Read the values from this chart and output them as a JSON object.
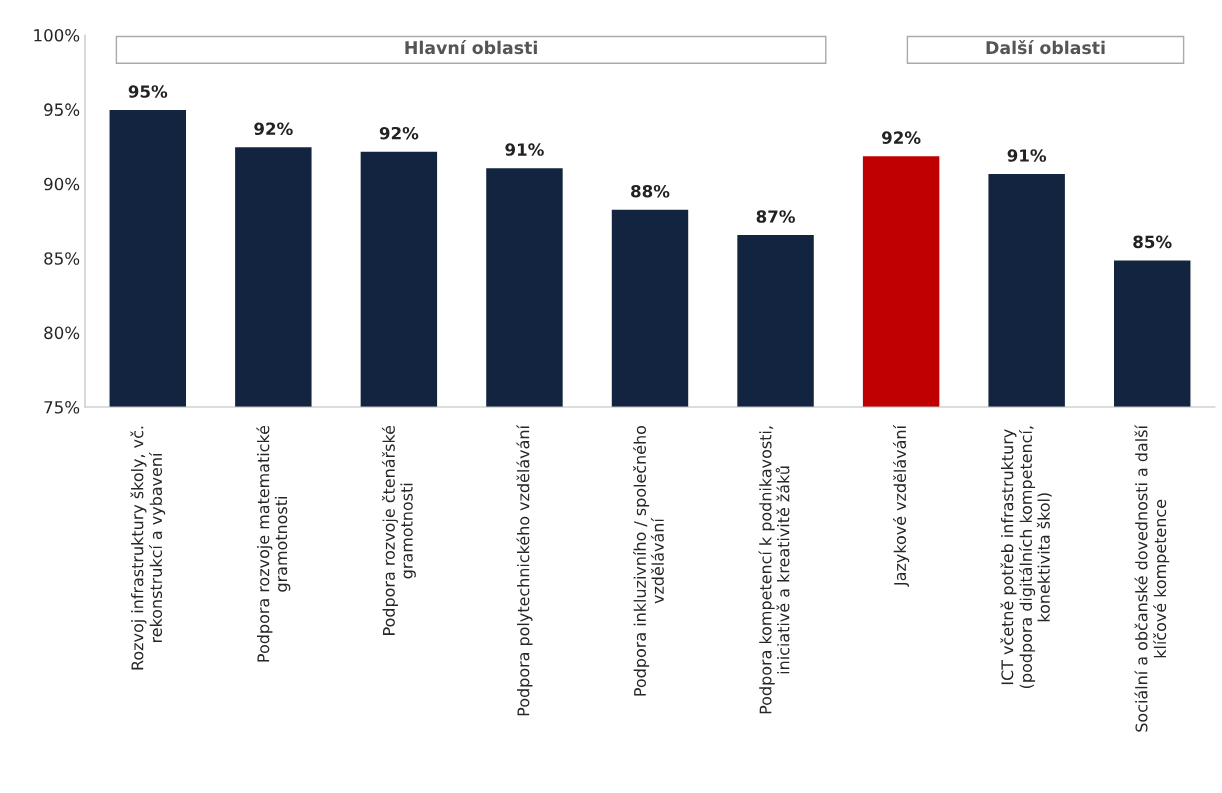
{
  "chart_data": {
    "type": "bar",
    "categories": [
      "Rozvoj infrastruktury školy, vč.\nrekonstrukcí a vybavení",
      "Podpora rozvoje matematické\ngramotnosti",
      "Podpora rozvoje čtenářské\ngramotnosti",
      "Podpora polytechnického vzdělávání",
      "Podpora inkluzivního / společného\nvzdělávání",
      "Podpora kompetencí k podnikavosti,\niniciativě a kreativitě žáků",
      "Jazykové vzdělávání",
      "ICT včetně potřeb infrastruktury\n(podpora digitálních kompetencí,\nkonektivita škol)",
      "Sociální a občanské dovednosti a další\nklíčové kompetence"
    ],
    "values": [
      95.0,
      92.5,
      92.2,
      91.1,
      88.3,
      86.6,
      91.9,
      90.7,
      84.9
    ],
    "colors": [
      "#12243f",
      "#12243f",
      "#12243f",
      "#12243f",
      "#12243f",
      "#12243f",
      "#c00000",
      "#12243f",
      "#12243f"
    ],
    "value_labels": [
      "95%",
      "92%",
      "92%",
      "91%",
      "88%",
      "87%",
      "92%",
      "91%",
      "85%"
    ],
    "ylim": [
      75,
      100
    ],
    "yticks": [
      {
        "value": 75,
        "label": "75%"
      },
      {
        "value": 80,
        "label": "80%"
      },
      {
        "value": 85,
        "label": "85%"
      },
      {
        "value": 90,
        "label": "90%"
      },
      {
        "value": 95,
        "label": "95%"
      },
      {
        "value": 100,
        "label": "100%"
      }
    ],
    "annotations": [
      "Hlavní oblasti",
      "Další oblasti"
    ],
    "grid": false,
    "legend": false
  }
}
